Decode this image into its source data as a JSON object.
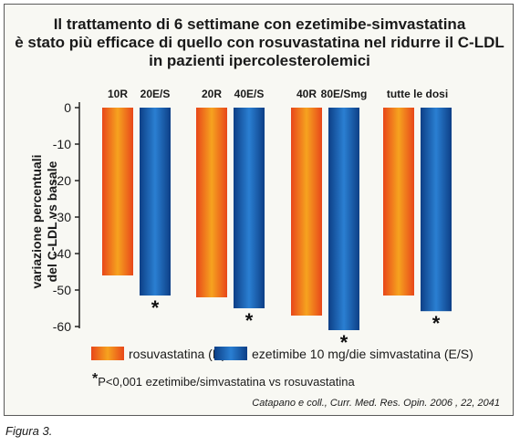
{
  "title_lines": [
    "Il trattamento di 6 settimane con ezetimibe-simvastatina",
    "è stato più efficace di quello con rosuvastatina nel ridurre il C-LDL",
    "in pazienti ipercolesterolemici"
  ],
  "footnote": {
    "symbol": "*",
    "text": "P<0,001 ezetimibe/simvastatina vs rosuvastatina"
  },
  "citation": "Catapano e coll., Curr. Med. Res. Opin. 2006 , 22, 2041",
  "figure_caption": "Figura 3.",
  "colors": {
    "rosuvastatina_gradient": [
      "#e8471a",
      "#f6a31f"
    ],
    "ezetimibe_gradient": [
      "#0d3f86",
      "#2a7fd2"
    ]
  },
  "chart_data": {
    "type": "bar",
    "ylabel_lines": [
      "variazione percentuali",
      "del C-LDL vs basale"
    ],
    "ylim": [
      -60,
      0
    ],
    "yticks": [
      0,
      -10,
      -20,
      -30,
      -40,
      -50,
      -60
    ],
    "grid": false,
    "legend_position": "bottom",
    "groups": [
      {
        "bars": [
          {
            "label": "10R",
            "series": "rosuvastatina (R)",
            "value": -46,
            "significant": false
          },
          {
            "label": "20E/S",
            "series": "ezetimibe 10 mg/die simvastatina (E/S)",
            "value": -51.5,
            "significant": true
          }
        ]
      },
      {
        "bars": [
          {
            "label": "20R",
            "series": "rosuvastatina (R)",
            "value": -52,
            "significant": false
          },
          {
            "label": "40E/S",
            "series": "ezetimibe 10 mg/die simvastatina (E/S)",
            "value": -55,
            "significant": true
          }
        ]
      },
      {
        "bars": [
          {
            "label": "40R",
            "series": "rosuvastatina (R)",
            "value": -57,
            "significant": false
          },
          {
            "label": "80E/Smg",
            "series": "ezetimibe 10 mg/die simvastatina (E/S)",
            "value": -61,
            "significant": true
          }
        ]
      },
      {
        "group_label": "tutte le dosi",
        "bars": [
          {
            "series": "rosuvastatina (R)",
            "value": -51.5,
            "significant": false
          },
          {
            "series": "ezetimibe 10 mg/die simvastatina (E/S)",
            "value": -55.8,
            "significant": true
          }
        ]
      }
    ],
    "series": [
      {
        "name": "rosuvastatina (R)",
        "key": "rosuvastatina_gradient"
      },
      {
        "name": "ezetimibe 10 mg/die simvastatina (E/S)",
        "key": "ezetimibe_gradient"
      }
    ]
  }
}
